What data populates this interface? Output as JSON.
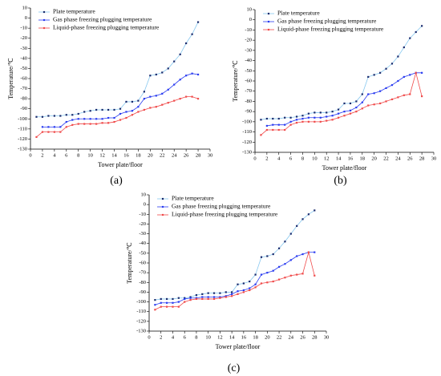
{
  "chart_data": [
    {
      "type": "line",
      "caption": "(a)",
      "xlabel": "Tower plate/floor",
      "ylabel": "Temperature/℃",
      "legend": "upper left",
      "x": [
        1,
        2,
        3,
        4,
        5,
        6,
        7,
        8,
        9,
        10,
        11,
        12,
        13,
        14,
        15,
        16,
        17,
        18,
        19,
        20,
        21,
        22,
        23,
        24,
        25,
        26,
        27,
        28
      ],
      "xlim": [
        0,
        30
      ],
      "xticks": [
        0,
        2,
        4,
        6,
        8,
        10,
        12,
        14,
        16,
        18,
        20,
        22,
        24,
        26,
        28,
        30
      ],
      "ylim": [
        -130,
        10
      ],
      "yticks": [
        -130,
        -120,
        -110,
        -100,
        -90,
        -80,
        -70,
        -60,
        -50,
        -40,
        -30,
        -20,
        -10,
        0,
        10
      ],
      "series": [
        {
          "name": "Plate temperature",
          "color": "#87c8f0",
          "values": [
            -98,
            -98,
            -97,
            -97,
            -97,
            -96,
            -96,
            -95,
            -93,
            -92,
            -91,
            -91,
            -91,
            -91,
            -90,
            -83,
            -83,
            -82,
            -73,
            -57,
            -56,
            -54,
            -50,
            -43,
            -36,
            -25,
            -16,
            -4
          ]
        },
        {
          "name": "Gas phase freezing plugging temperature",
          "color": "#2a3cf0",
          "values": [
            null,
            -108,
            -108,
            -108,
            -108,
            -103,
            -101,
            -100,
            -100,
            -100,
            -100,
            -100,
            -99,
            -99,
            -95,
            -93,
            -92,
            -88,
            -80,
            -78,
            -77,
            -75,
            -71,
            -66,
            -61,
            -57,
            -55,
            -56
          ]
        },
        {
          "name": "Liquid-phase freezing plugging temperature",
          "color": "#f04a4a",
          "values": [
            -118,
            -113,
            -113,
            -113,
            -113,
            -108,
            -106,
            -105,
            -105,
            -105,
            -105,
            -104,
            -104,
            -103,
            -101,
            -99,
            -96,
            -93,
            -91,
            -89,
            -88,
            -86,
            -84,
            -82,
            -80,
            -78,
            -78,
            -80
          ]
        }
      ]
    },
    {
      "type": "line",
      "caption": "(b)",
      "xlabel": "Tower plate/floor",
      "ylabel": "Temperature/℃",
      "legend": "upper left",
      "x": [
        1,
        2,
        3,
        4,
        5,
        6,
        7,
        8,
        9,
        10,
        11,
        12,
        13,
        14,
        15,
        16,
        17,
        18,
        19,
        20,
        21,
        22,
        23,
        24,
        25,
        26,
        27,
        28
      ],
      "xlim": [
        0,
        30
      ],
      "xticks": [
        0,
        2,
        4,
        6,
        8,
        10,
        12,
        14,
        16,
        18,
        20,
        22,
        24,
        26,
        28,
        30
      ],
      "ylim": [
        -130,
        10
      ],
      "yticks": [
        -130,
        -120,
        -110,
        -100,
        -90,
        -80,
        -70,
        -60,
        -50,
        -40,
        -30,
        -20,
        -10,
        0,
        10
      ],
      "series": [
        {
          "name": "Plate temperature",
          "color": "#87c8f0",
          "values": [
            -98,
            -97,
            -97,
            -97,
            -96,
            -96,
            -95,
            -94,
            -92,
            -91,
            -91,
            -91,
            -90,
            -88,
            -82,
            -82,
            -80,
            -73,
            -56,
            -54,
            -52,
            -48,
            -43,
            -36,
            -27,
            -18,
            -12,
            -6
          ]
        },
        {
          "name": "Gas phase freezing plugging temperature",
          "color": "#2a3cf0",
          "values": [
            null,
            -104,
            -103,
            -103,
            -103,
            -100,
            -98,
            -97,
            -96,
            -96,
            -96,
            -95,
            -94,
            -92,
            -90,
            -89,
            -86,
            -81,
            -73,
            -72,
            -70,
            -67,
            -64,
            -60,
            -56,
            -54,
            -52,
            -52
          ]
        },
        {
          "name": "Liquid-phase freezing plugging temperature",
          "color": "#f04a4a",
          "values": [
            -113,
            -108,
            -108,
            -108,
            -108,
            -103,
            -101,
            -100,
            -100,
            -100,
            -100,
            -99,
            -98,
            -96,
            -94,
            -92,
            -90,
            -87,
            -84,
            -83,
            -82,
            -80,
            -78,
            -76,
            -74,
            -73,
            -52,
            -75
          ]
        }
      ]
    },
    {
      "type": "line",
      "caption": "(c)",
      "xlabel": "Tower plate/floor",
      "ylabel": "Temperature/℃",
      "legend": "upper left",
      "x": [
        1,
        2,
        3,
        4,
        5,
        6,
        7,
        8,
        9,
        10,
        11,
        12,
        13,
        14,
        15,
        16,
        17,
        18,
        19,
        20,
        21,
        22,
        23,
        24,
        25,
        26,
        27,
        28
      ],
      "xlim": [
        0,
        30
      ],
      "xticks": [
        0,
        2,
        4,
        6,
        8,
        10,
        12,
        14,
        16,
        18,
        20,
        22,
        24,
        26,
        28,
        30
      ],
      "ylim": [
        -130,
        10
      ],
      "yticks": [
        -130,
        -120,
        -110,
        -100,
        -90,
        -80,
        -70,
        -60,
        -50,
        -40,
        -30,
        -20,
        -10,
        0,
        10
      ],
      "series": [
        {
          "name": "Plate temperature",
          "color": "#87c8f0",
          "values": [
            -98,
            -97,
            -97,
            -97,
            -96,
            -96,
            -95,
            -93,
            -92,
            -91,
            -91,
            -91,
            -90,
            -90,
            -82,
            -81,
            -79,
            -72,
            -54,
            -53,
            -51,
            -45,
            -38,
            -30,
            -22,
            -15,
            -10,
            -6
          ]
        },
        {
          "name": "Gas phase freezing plugging temperature",
          "color": "#2a3cf0",
          "values": [
            -103,
            -101,
            -101,
            -101,
            -100,
            -97,
            -96,
            -96,
            -95,
            -95,
            -95,
            -95,
            -94,
            -92,
            -89,
            -88,
            -86,
            -82,
            -72,
            -70,
            -68,
            -64,
            -61,
            -57,
            -53,
            -51,
            -49,
            -49
          ]
        },
        {
          "name": "Liquid-phase freezing plugging temperature",
          "color": "#f04a4a",
          "values": [
            -108,
            -105,
            -105,
            -105,
            -105,
            -100,
            -98,
            -97,
            -97,
            -97,
            -97,
            -96,
            -95,
            -94,
            -92,
            -90,
            -88,
            -85,
            -81,
            -80,
            -79,
            -77,
            -75,
            -73,
            -72,
            -71,
            -49,
            -73
          ]
        }
      ]
    }
  ]
}
